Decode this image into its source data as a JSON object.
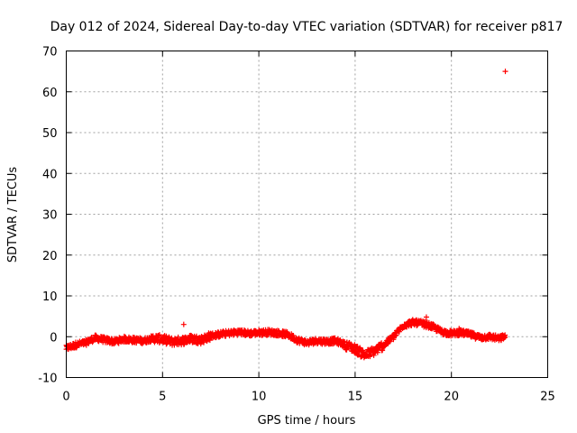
{
  "chart_data": {
    "type": "scatter",
    "title": "Day 012 of 2024, Sidereal Day-to-day VTEC variation (SDTVAR) for receiver p817",
    "xlabel": "GPS time / hours",
    "ylabel": "SDTVAR / TECUs",
    "xlim": [
      0,
      25
    ],
    "ylim": [
      -10,
      70
    ],
    "xticks": [
      0,
      5,
      10,
      15,
      20,
      25
    ],
    "yticks": [
      -10,
      0,
      10,
      20,
      30,
      40,
      50,
      60,
      70
    ],
    "xtick_labels": [
      "0",
      "5",
      "10",
      "15",
      "20",
      "25"
    ],
    "ytick_labels": [
      "-10",
      "0",
      "10",
      "20",
      "30",
      "40",
      "50",
      "60",
      "70"
    ],
    "grid": true,
    "marker": "plus",
    "color": "#ff0000",
    "series": [
      {
        "name": "SDTVAR",
        "trend": [
          [
            0.0,
            -2.8
          ],
          [
            0.5,
            -2.0
          ],
          [
            1.0,
            -1.5
          ],
          [
            1.5,
            -0.3
          ],
          [
            2.0,
            -0.8
          ],
          [
            2.5,
            -1.2
          ],
          [
            3.0,
            -0.6
          ],
          [
            3.5,
            -0.8
          ],
          [
            4.0,
            -1.0
          ],
          [
            4.5,
            -0.4
          ],
          [
            5.0,
            -0.6
          ],
          [
            5.5,
            -1.2
          ],
          [
            6.0,
            -1.0
          ],
          [
            6.5,
            -0.5
          ],
          [
            7.0,
            -0.8
          ],
          [
            7.5,
            0.2
          ],
          [
            8.0,
            0.6
          ],
          [
            8.5,
            0.9
          ],
          [
            9.0,
            1.1
          ],
          [
            9.5,
            0.8
          ],
          [
            10.0,
            1.0
          ],
          [
            10.5,
            1.1
          ],
          [
            11.0,
            0.9
          ],
          [
            11.5,
            0.5
          ],
          [
            12.0,
            -0.8
          ],
          [
            12.5,
            -1.5
          ],
          [
            13.0,
            -1.0
          ],
          [
            13.5,
            -1.2
          ],
          [
            14.0,
            -1.0
          ],
          [
            14.5,
            -2.0
          ],
          [
            15.0,
            -3.0
          ],
          [
            15.5,
            -4.5
          ],
          [
            16.0,
            -3.5
          ],
          [
            16.5,
            -2.0
          ],
          [
            17.0,
            0.0
          ],
          [
            17.5,
            2.8
          ],
          [
            18.0,
            3.5
          ],
          [
            18.5,
            3.2
          ],
          [
            19.0,
            2.5
          ],
          [
            19.5,
            1.2
          ],
          [
            20.0,
            0.8
          ],
          [
            20.5,
            1.0
          ],
          [
            21.0,
            0.5
          ],
          [
            21.5,
            -0.2
          ],
          [
            22.0,
            0.0
          ],
          [
            22.5,
            -0.5
          ],
          [
            22.8,
            0.2
          ]
        ],
        "outliers": [
          [
            6.1,
            3.0
          ],
          [
            18.7,
            4.8
          ],
          [
            20.4,
            2.0
          ],
          [
            22.8,
            65.0
          ]
        ]
      }
    ]
  }
}
